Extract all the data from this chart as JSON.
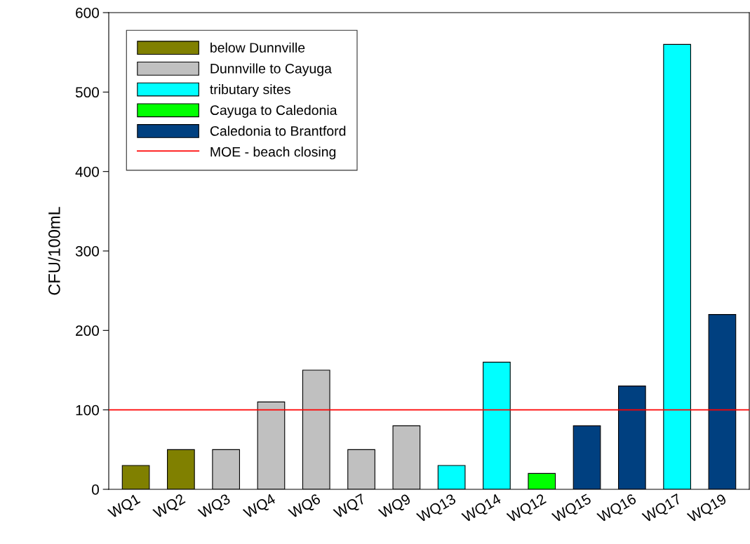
{
  "chart_data": {
    "type": "bar",
    "ylabel": "CFU/100mL",
    "categories": [
      "WQ1",
      "WQ2",
      "WQ3",
      "WQ4",
      "WQ6",
      "WQ7",
      "WQ9",
      "WQ13",
      "WQ14",
      "WQ12",
      "WQ15",
      "WQ16",
      "WQ17",
      "WQ19"
    ],
    "series": [
      {
        "name": "below Dunnville",
        "color": "#808000",
        "values": [
          30,
          50,
          null,
          null,
          null,
          null,
          null,
          null,
          null,
          null,
          null,
          null,
          null,
          null
        ]
      },
      {
        "name": "Dunnville to Cayuga",
        "color": "#c0c0c0",
        "values": [
          null,
          null,
          50,
          110,
          150,
          50,
          80,
          null,
          null,
          null,
          null,
          null,
          null,
          null
        ]
      },
      {
        "name": "tributary sites",
        "color": "#00ffff",
        "values": [
          null,
          null,
          null,
          null,
          null,
          null,
          null,
          30,
          160,
          null,
          null,
          null,
          560,
          null
        ]
      },
      {
        "name": "Cayuga to Caledonia",
        "color": "#00ff00",
        "values": [
          null,
          null,
          null,
          null,
          null,
          null,
          null,
          null,
          null,
          20,
          null,
          null,
          null,
          null
        ]
      },
      {
        "name": "Caledonia to Brantford",
        "color": "#004080",
        "values": [
          null,
          null,
          null,
          null,
          null,
          null,
          null,
          null,
          null,
          null,
          80,
          130,
          null,
          220
        ]
      }
    ],
    "ref_lines": [
      {
        "axis": "y",
        "value": 100,
        "label": "MOE - beach closing",
        "color": "#ff0000"
      }
    ],
    "ylim": [
      0,
      600
    ],
    "yticks": [
      0,
      100,
      200,
      300,
      400,
      500,
      600
    ],
    "grid": false,
    "legend": "top left"
  }
}
